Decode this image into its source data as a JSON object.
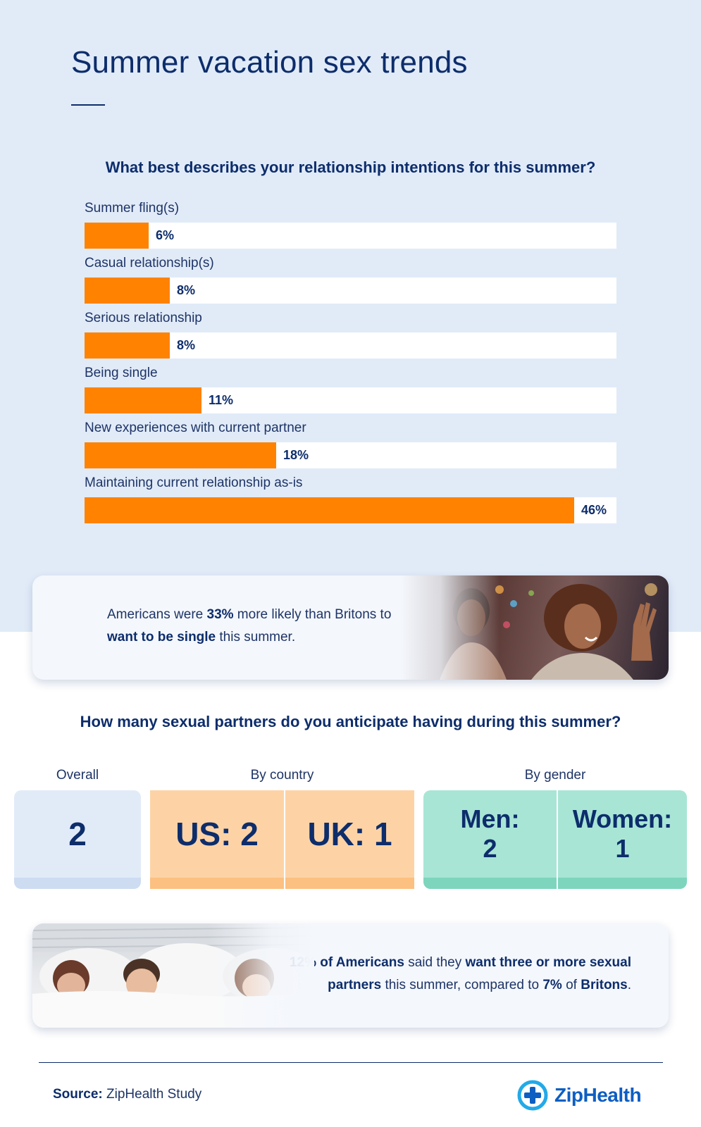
{
  "page": {
    "title": "Summer vacation sex trends"
  },
  "chart_data": {
    "type": "bar",
    "orientation": "horizontal",
    "title": "What best describes your relationship intentions for this summer?",
    "categories": [
      "Summer fling(s)",
      "Casual relationship(s)",
      "Serious relationship",
      "Being single",
      "New experiences with current partner",
      "Maintaining current relationship as-is"
    ],
    "values": [
      6,
      8,
      8,
      11,
      18,
      46
    ],
    "value_labels": [
      "6%",
      "8%",
      "8%",
      "11%",
      "18%",
      "46%"
    ],
    "xlim": [
      0,
      50
    ],
    "grid": false,
    "colors": {
      "bar": "#ff8200",
      "track": "#ffffff"
    }
  },
  "callout1": {
    "part1": "Americans were ",
    "bold1": "33%",
    "part2": " more likely than Britons to ",
    "bold2": "want to be single",
    "part3": " this summer."
  },
  "partners": {
    "question": "How many sexual partners do you anticipate having during this summer?",
    "overall_label": "Overall",
    "country_label": "By country",
    "gender_label": "By gender",
    "overall_value": "2",
    "us": "US: 2",
    "uk": "UK: 1",
    "men": "Men:\n2",
    "women": "Women:\n1"
  },
  "callout2": {
    "bold1": "12% of Americans",
    "part1": " said they ",
    "bold2": "want three or more sexual partners",
    "part2": " this summer, compared to ",
    "bold3": "7%",
    "part3": " of ",
    "bold4": "Britons",
    "part4": "."
  },
  "footer": {
    "source_label": "Source:",
    "source_value": " ZipHealth Study",
    "logo_text": "ZipHealth",
    "logo_icon": "plus-circle-icon"
  },
  "colors": {
    "navy": "#0d2d6b",
    "orange": "#ff8200",
    "light_blue": "#e1ebf8",
    "peach": "#fdd3a6",
    "mint": "#a8e5d5",
    "brand_blue": "#0d5ec2"
  }
}
